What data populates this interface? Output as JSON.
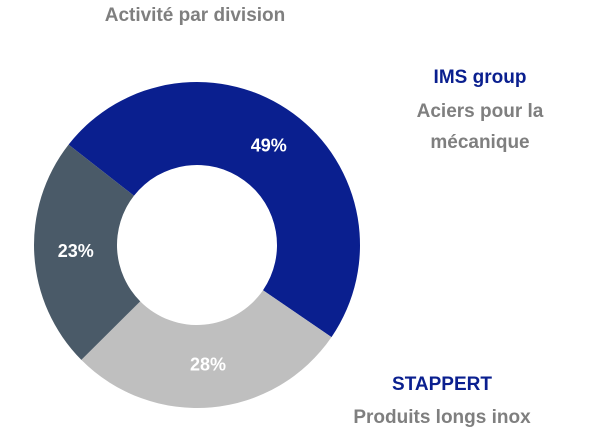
{
  "chart_data": {
    "type": "donut",
    "title": "Activité par division",
    "categories": [
      "IMS group",
      "STAPPERT",
      null
    ],
    "descriptions": [
      "Aciers pour la mécanique",
      "Produits longs inox",
      null
    ],
    "values": [
      49,
      28,
      23
    ],
    "value_labels": [
      "49%",
      "28%",
      "23%"
    ],
    "colors": [
      "#0a1f8f",
      "#bfbfbf",
      "#4a5a68"
    ],
    "label_colors": [
      "#0a1f8f",
      "#0a1f8f",
      null
    ]
  }
}
